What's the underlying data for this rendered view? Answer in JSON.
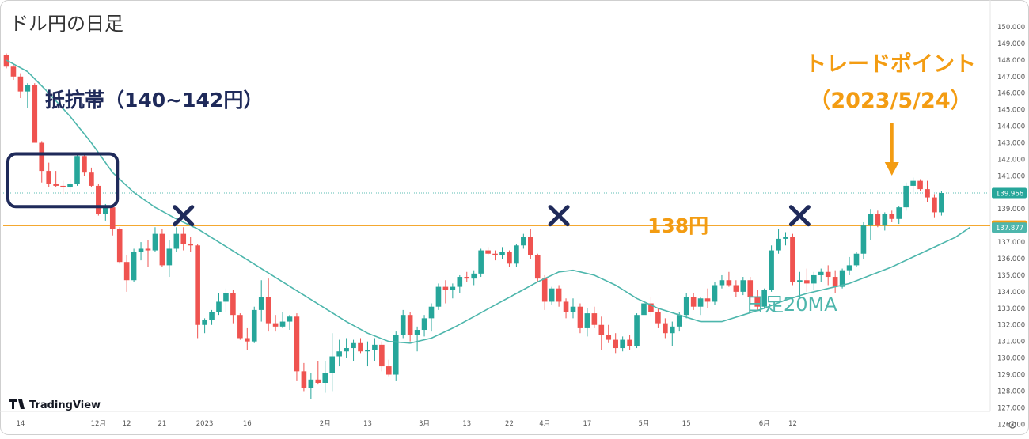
{
  "chart_data": {
    "type": "candlestick",
    "title": "ドル円の日足",
    "y_axis": {
      "ticks": [
        "150.000",
        "149.000",
        "148.000",
        "147.000",
        "146.000",
        "145.000",
        "144.000",
        "143.000",
        "142.000",
        "141.000",
        "140.000",
        "139.000",
        "138.000",
        "137.000",
        "136.000",
        "135.000",
        "134.000",
        "133.000",
        "132.000",
        "131.000",
        "130.000",
        "129.000",
        "128.000",
        "127.000",
        "126.000"
      ],
      "ylim": [
        125.6,
        150.3
      ],
      "current_price_label": "139.966",
      "level_label": "138.000",
      "ma_label": "137.877"
    },
    "x_axis": {
      "ticks": [
        {
          "label": "14",
          "i": 2
        },
        {
          "label": "12月",
          "i": 13
        },
        {
          "label": "12",
          "i": 17
        },
        {
          "label": "21",
          "i": 22
        },
        {
          "label": "2023",
          "i": 28
        },
        {
          "label": "16",
          "i": 34
        },
        {
          "label": "2月",
          "i": 45
        },
        {
          "label": "13",
          "i": 51
        },
        {
          "label": "3月",
          "i": 59
        },
        {
          "label": "13",
          "i": 65
        },
        {
          "label": "22",
          "i": 71
        },
        {
          "label": "4月",
          "i": 76
        },
        {
          "label": "17",
          "i": 82
        },
        {
          "label": "5月",
          "i": 90
        },
        {
          "label": "15",
          "i": 96
        },
        {
          "label": "6月",
          "i": 107
        },
        {
          "label": "12",
          "i": 111
        }
      ]
    },
    "ohlc": [
      [
        148.3,
        148.4,
        147.5,
        147.6
      ],
      [
        147.6,
        147.8,
        146.8,
        147.0
      ],
      [
        147.0,
        147.2,
        145.7,
        146.1
      ],
      [
        146.1,
        146.6,
        145.1,
        146.5
      ],
      [
        146.5,
        146.6,
        143.0,
        143.0
      ],
      [
        143.0,
        143.1,
        140.6,
        141.3
      ],
      [
        141.3,
        141.8,
        140.3,
        140.5
      ],
      [
        140.5,
        141.3,
        140.3,
        140.4
      ],
      [
        140.4,
        140.7,
        139.9,
        140.3
      ],
      [
        140.3,
        140.8,
        140.0,
        140.5
      ],
      [
        140.5,
        142.3,
        140.4,
        142.2
      ],
      [
        142.2,
        142.4,
        141.0,
        141.2
      ],
      [
        141.2,
        141.5,
        140.3,
        140.4
      ],
      [
        140.4,
        140.5,
        138.6,
        138.7
      ],
      [
        138.7,
        139.3,
        138.3,
        139.1
      ],
      [
        139.1,
        139.2,
        137.4,
        137.8
      ],
      [
        137.8,
        137.9,
        135.7,
        135.8
      ],
      [
        135.8,
        136.2,
        134.0,
        134.7
      ],
      [
        134.7,
        136.6,
        134.6,
        136.4
      ],
      [
        136.4,
        137.0,
        135.9,
        136.6
      ],
      [
        136.6,
        137.1,
        135.5,
        136.5
      ],
      [
        136.5,
        137.9,
        136.4,
        137.5
      ],
      [
        137.5,
        137.8,
        135.5,
        135.6
      ],
      [
        135.6,
        137.1,
        134.9,
        136.6
      ],
      [
        136.6,
        137.9,
        136.4,
        137.5
      ],
      [
        137.5,
        137.9,
        136.5,
        136.9
      ],
      [
        136.9,
        137.3,
        136.4,
        136.8
      ],
      [
        136.8,
        136.9,
        131.2,
        132.0
      ],
      [
        132.0,
        132.4,
        131.5,
        132.3
      ],
      [
        132.3,
        132.9,
        132.0,
        132.8
      ],
      [
        132.8,
        133.9,
        132.6,
        133.4
      ],
      [
        133.4,
        134.2,
        132.8,
        133.9
      ],
      [
        133.9,
        134.1,
        132.1,
        132.6
      ],
      [
        132.6,
        132.7,
        131.1,
        131.2
      ],
      [
        131.2,
        131.8,
        130.5,
        131.0
      ],
      [
        131.0,
        133.1,
        130.9,
        132.9
      ],
      [
        132.9,
        134.7,
        132.2,
        133.7
      ],
      [
        133.7,
        134.8,
        131.6,
        132.1
      ],
      [
        132.1,
        132.6,
        131.6,
        131.9
      ],
      [
        131.9,
        132.8,
        131.8,
        132.2
      ],
      [
        132.2,
        132.6,
        131.7,
        132.5
      ],
      [
        132.5,
        132.7,
        128.6,
        129.2
      ],
      [
        129.2,
        129.7,
        128.0,
        128.2
      ],
      [
        128.2,
        129.1,
        127.5,
        128.7
      ],
      [
        128.7,
        129.8,
        128.4,
        128.5
      ],
      [
        128.5,
        129.8,
        127.9,
        129.1
      ],
      [
        129.1,
        131.5,
        128.0,
        130.1
      ],
      [
        130.1,
        131.1,
        129.5,
        130.4
      ],
      [
        130.4,
        131.2,
        130.0,
        130.6
      ],
      [
        130.6,
        131.1,
        129.8,
        130.9
      ],
      [
        130.9,
        131.2,
        130.3,
        130.4
      ],
      [
        130.4,
        131.0,
        129.5,
        130.5
      ],
      [
        130.5,
        131.2,
        129.8,
        130.8
      ],
      [
        130.8,
        131.0,
        129.2,
        129.5
      ],
      [
        129.5,
        129.9,
        128.9,
        129.0
      ],
      [
        129.0,
        131.6,
        128.6,
        131.4
      ],
      [
        131.4,
        132.9,
        131.2,
        132.6
      ],
      [
        132.6,
        132.8,
        131.0,
        131.4
      ],
      [
        131.4,
        131.9,
        130.4,
        131.7
      ],
      [
        131.7,
        132.6,
        131.3,
        132.4
      ],
      [
        132.4,
        133.3,
        131.6,
        133.1
      ],
      [
        133.1,
        134.5,
        132.9,
        134.3
      ],
      [
        134.3,
        134.7,
        133.3,
        134.1
      ],
      [
        134.1,
        134.5,
        133.6,
        134.3
      ],
      [
        134.3,
        135.0,
        133.9,
        134.9
      ],
      [
        134.9,
        135.2,
        134.6,
        134.8
      ],
      [
        134.8,
        135.3,
        134.4,
        135.1
      ],
      [
        135.1,
        136.6,
        134.9,
        136.5
      ],
      [
        136.5,
        136.7,
        136.2,
        136.3
      ],
      [
        136.3,
        136.5,
        135.9,
        136.2
      ],
      [
        136.2,
        136.7,
        136.0,
        136.4
      ],
      [
        136.4,
        136.5,
        135.5,
        135.7
      ],
      [
        135.7,
        136.9,
        135.5,
        136.8
      ],
      [
        136.8,
        137.5,
        136.6,
        137.3
      ],
      [
        137.3,
        137.8,
        136.0,
        136.2
      ],
      [
        136.2,
        136.3,
        134.6,
        134.8
      ],
      [
        134.8,
        135.0,
        132.9,
        133.4
      ],
      [
        133.4,
        134.3,
        133.2,
        134.2
      ],
      [
        134.2,
        134.4,
        133.1,
        133.4
      ],
      [
        133.4,
        133.6,
        132.4,
        132.8
      ],
      [
        132.8,
        133.6,
        132.4,
        133.1
      ],
      [
        133.1,
        133.3,
        131.5,
        131.8
      ],
      [
        131.8,
        133.0,
        131.3,
        132.7
      ],
      [
        132.7,
        133.1,
        131.8,
        132.0
      ],
      [
        132.0,
        132.5,
        130.5,
        131.4
      ],
      [
        131.4,
        132.0,
        130.9,
        131.1
      ],
      [
        131.1,
        131.5,
        130.3,
        130.6
      ],
      [
        130.6,
        131.3,
        130.4,
        131.1
      ],
      [
        131.1,
        131.4,
        130.5,
        130.7
      ],
      [
        130.7,
        132.7,
        130.6,
        132.6
      ],
      [
        132.6,
        133.6,
        132.3,
        133.3
      ],
      [
        133.3,
        133.7,
        132.5,
        132.8
      ],
      [
        132.8,
        133.0,
        131.8,
        132.1
      ],
      [
        132.1,
        132.4,
        131.2,
        131.5
      ],
      [
        131.5,
        132.2,
        130.7,
        131.9
      ],
      [
        131.9,
        132.8,
        131.6,
        132.6
      ],
      [
        132.6,
        133.9,
        132.4,
        133.7
      ],
      [
        133.7,
        133.9,
        132.9,
        133.1
      ],
      [
        133.1,
        133.7,
        132.6,
        133.6
      ],
      [
        133.6,
        134.2,
        133.0,
        133.4
      ],
      [
        133.4,
        134.6,
        133.2,
        134.4
      ],
      [
        134.4,
        135.0,
        134.2,
        134.7
      ],
      [
        134.7,
        135.2,
        134.3,
        134.4
      ],
      [
        134.4,
        134.7,
        133.7,
        134.0
      ],
      [
        134.0,
        134.9,
        133.8,
        134.7
      ],
      [
        134.7,
        134.9,
        133.2,
        133.7
      ],
      [
        133.7,
        134.1,
        132.9,
        133.1
      ],
      [
        133.1,
        134.2,
        133.0,
        134.1
      ],
      [
        134.1,
        136.8,
        134.0,
        136.5
      ],
      [
        136.5,
        137.8,
        136.3,
        137.2
      ],
      [
        137.2,
        137.6,
        136.8,
        137.3
      ],
      [
        137.3,
        137.5,
        134.4,
        134.6
      ],
      [
        134.6,
        135.2,
        133.6,
        134.7
      ],
      [
        134.7,
        135.4,
        134.0,
        134.5
      ],
      [
        134.5,
        135.2,
        134.1,
        135.0
      ],
      [
        135.0,
        135.4,
        134.6,
        135.2
      ],
      [
        135.2,
        135.6,
        134.4,
        134.9
      ],
      [
        134.9,
        135.3,
        133.9,
        134.3
      ],
      [
        134.3,
        135.4,
        134.2,
        135.3
      ],
      [
        135.3,
        136.1,
        135.0,
        135.6
      ],
      [
        135.6,
        136.4,
        135.5,
        136.3
      ],
      [
        136.3,
        138.2,
        136.0,
        138.0
      ],
      [
        138.0,
        139.0,
        137.1,
        138.7
      ],
      [
        138.7,
        138.9,
        137.9,
        138.0
      ],
      [
        138.0,
        138.8,
        137.7,
        138.7
      ],
      [
        138.7,
        138.9,
        138.2,
        138.4
      ],
      [
        138.4,
        139.2,
        138.1,
        139.1
      ],
      [
        139.1,
        140.6,
        138.9,
        140.4
      ],
      [
        140.4,
        140.9,
        139.9,
        140.7
      ],
      [
        140.7,
        140.8,
        140.1,
        140.2
      ],
      [
        140.2,
        140.7,
        139.4,
        139.7
      ],
      [
        139.7,
        139.9,
        138.5,
        138.8
      ],
      [
        138.8,
        140.1,
        138.6,
        139.966
      ]
    ],
    "ma20": [
      [
        0,
        148.0
      ],
      [
        3,
        147.3
      ],
      [
        6,
        146.0
      ],
      [
        9,
        144.6
      ],
      [
        12,
        143.0
      ],
      [
        15,
        141.2
      ],
      [
        18,
        140.0
      ],
      [
        21,
        139.1
      ],
      [
        24,
        138.4
      ],
      [
        27,
        137.8
      ],
      [
        30,
        137.0
      ],
      [
        33,
        136.2
      ],
      [
        36,
        135.4
      ],
      [
        39,
        134.6
      ],
      [
        42,
        133.8
      ],
      [
        45,
        133.0
      ],
      [
        48,
        132.2
      ],
      [
        51,
        131.5
      ],
      [
        54,
        131.0
      ],
      [
        57,
        130.9
      ],
      [
        60,
        131.2
      ],
      [
        63,
        131.8
      ],
      [
        66,
        132.5
      ],
      [
        69,
        133.2
      ],
      [
        72,
        133.9
      ],
      [
        75,
        134.6
      ],
      [
        78,
        135.2
      ],
      [
        80,
        135.3
      ],
      [
        83,
        135.0
      ],
      [
        86,
        134.4
      ],
      [
        89,
        133.6
      ],
      [
        92,
        133.0
      ],
      [
        95,
        132.6
      ],
      [
        98,
        132.2
      ],
      [
        101,
        132.2
      ],
      [
        104,
        132.6
      ],
      [
        107,
        133.0
      ],
      [
        110,
        133.5
      ],
      [
        113,
        133.9
      ],
      [
        116,
        134.2
      ],
      [
        119,
        134.5
      ],
      [
        122,
        135.0
      ],
      [
        125,
        135.5
      ],
      [
        128,
        136.1
      ],
      [
        131,
        136.7
      ],
      [
        134,
        137.3
      ],
      [
        136,
        137.877
      ]
    ],
    "levels": [
      {
        "price": 138.0,
        "label": "138円"
      },
      {
        "price": 139.966
      }
    ],
    "annotations": {
      "resistance_title": "抵抗帯（140~142円）",
      "resistance_zone": [
        140.0,
        142.0
      ],
      "trade_point_title": "トレードポイント",
      "trade_point_date": "（2023/5/24）",
      "trade_point_index": 125,
      "ma_label": "日足20MA",
      "cross_marks": [
        {
          "i": 25,
          "price": 138.5
        },
        {
          "i": 78,
          "price": 138.5
        },
        {
          "i": 112,
          "price": 138.5
        }
      ]
    },
    "colors": {
      "up": "#26a69a",
      "down": "#ef5350",
      "ma": "#4db6ac",
      "level": "#f39c12",
      "annotation_dark": "#1f2a5a",
      "annotation_orange": "#f39c12"
    }
  },
  "branding": {
    "logo_text": "TradingView"
  }
}
